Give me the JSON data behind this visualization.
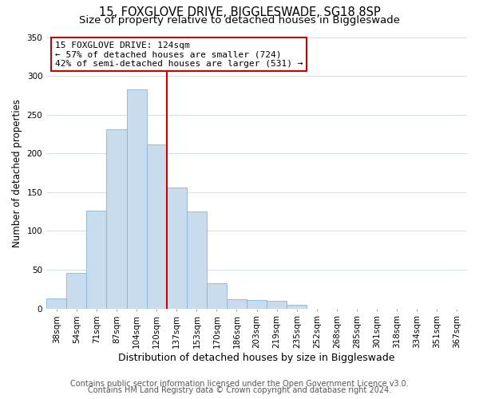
{
  "title": "15, FOXGLOVE DRIVE, BIGGLESWADE, SG18 8SP",
  "subtitle": "Size of property relative to detached houses in Biggleswade",
  "xlabel": "Distribution of detached houses by size in Biggleswade",
  "ylabel": "Number of detached properties",
  "bar_labels": [
    "38sqm",
    "54sqm",
    "71sqm",
    "87sqm",
    "104sqm",
    "120sqm",
    "137sqm",
    "153sqm",
    "170sqm",
    "186sqm",
    "203sqm",
    "219sqm",
    "235sqm",
    "252sqm",
    "268sqm",
    "285sqm",
    "301sqm",
    "318sqm",
    "334sqm",
    "351sqm",
    "367sqm"
  ],
  "bar_heights": [
    13,
    46,
    126,
    231,
    283,
    212,
    156,
    125,
    33,
    12,
    11,
    10,
    5,
    0,
    0,
    0,
    0,
    0,
    0,
    0,
    0
  ],
  "bar_color": "#c8dcee",
  "bar_edge_color": "#8ab4d4",
  "vline_x": 5.5,
  "vline_color": "#cc0000",
  "ylim": [
    0,
    350
  ],
  "yticks": [
    0,
    50,
    100,
    150,
    200,
    250,
    300,
    350
  ],
  "annotation_title": "15 FOXGLOVE DRIVE: 124sqm",
  "annotation_line1": "← 57% of detached houses are smaller (724)",
  "annotation_line2": "42% of semi-detached houses are larger (531) →",
  "footer1": "Contains HM Land Registry data © Crown copyright and database right 2024.",
  "footer2": "Contains public sector information licensed under the Open Government Licence v3.0.",
  "title_fontsize": 10.5,
  "subtitle_fontsize": 9.5,
  "xlabel_fontsize": 9,
  "ylabel_fontsize": 8.5,
  "tick_fontsize": 7.5,
  "annot_fontsize": 8,
  "footer_fontsize": 7
}
